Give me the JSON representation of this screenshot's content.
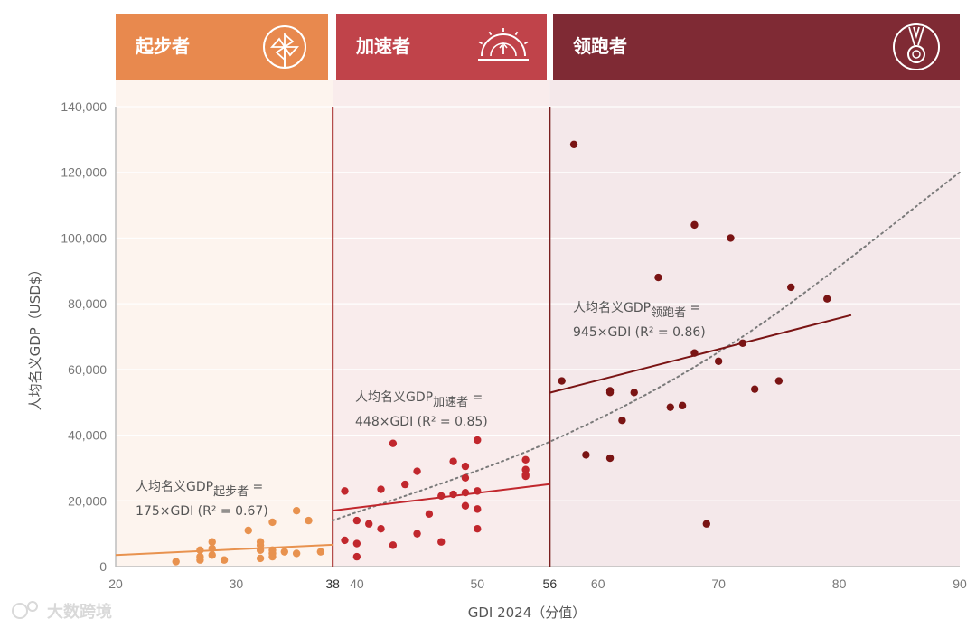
{
  "chart_data": {
    "type": "scatter",
    "title": "",
    "xlabel": "GDI 2024（分值）",
    "ylabel": "人均名义GDP（USD$）",
    "xlim": [
      20,
      90
    ],
    "ylim": [
      0,
      140000
    ],
    "x_ticks": [
      "20",
      "30",
      "38",
      "40",
      "50",
      "56",
      "60",
      "70",
      "80",
      "90"
    ],
    "y_ticks": [
      "0",
      "20,000",
      "40,000",
      "60,000",
      "80,000",
      "100,000",
      "120,000",
      "140,000"
    ],
    "grid": true,
    "zone_boundaries": [
      38,
      56
    ],
    "zones": [
      {
        "name": "起步者",
        "color": "#e8894e",
        "bg": "#fdf4ee",
        "icon": "pinwheel-icon"
      },
      {
        "name": "加速者",
        "color": "#c0434a",
        "bg": "#f9ecec",
        "icon": "gauge-icon"
      },
      {
        "name": "领跑者",
        "color": "#7f2a34",
        "bg": "#f4e8ea",
        "icon": "medal-icon"
      }
    ],
    "series": [
      {
        "name": "起步者",
        "color": "#e8924f",
        "points": [
          [
            25,
            1500
          ],
          [
            27,
            2000
          ],
          [
            27,
            3000
          ],
          [
            27,
            5000
          ],
          [
            28,
            3500
          ],
          [
            28,
            5500
          ],
          [
            28,
            7500
          ],
          [
            29,
            2000
          ],
          [
            31,
            11000
          ],
          [
            32,
            2500
          ],
          [
            32,
            5000
          ],
          [
            32,
            6500
          ],
          [
            32,
            7500
          ],
          [
            33,
            3000
          ],
          [
            33,
            4000
          ],
          [
            33,
            5000
          ],
          [
            33,
            13500
          ],
          [
            34,
            4500
          ],
          [
            35,
            4000
          ],
          [
            35,
            17000
          ],
          [
            36,
            14000
          ],
          [
            37,
            4500
          ]
        ],
        "fit": {
          "slope": 175,
          "x_range": [
            20,
            38
          ],
          "label_prefix": "人均名义GDP",
          "label_sub": "起步者",
          "label_eq": " =",
          "label_line2": "175×GDI (R² = 0.67)"
        }
      },
      {
        "name": "加速者",
        "color": "#c1272d",
        "points": [
          [
            39,
            23000
          ],
          [
            39,
            8000
          ],
          [
            40,
            14000
          ],
          [
            40,
            7000
          ],
          [
            40,
            3000
          ],
          [
            41,
            13000
          ],
          [
            42,
            23500
          ],
          [
            42,
            11500
          ],
          [
            43,
            6500
          ],
          [
            43,
            37500
          ],
          [
            44,
            25000
          ],
          [
            45,
            29000
          ],
          [
            45,
            10000
          ],
          [
            46,
            16000
          ],
          [
            47,
            21500
          ],
          [
            47,
            7500
          ],
          [
            48,
            22000
          ],
          [
            48,
            32000
          ],
          [
            49,
            30500
          ],
          [
            49,
            27000
          ],
          [
            49,
            18500
          ],
          [
            49,
            22500
          ],
          [
            50,
            38500
          ],
          [
            50,
            23000
          ],
          [
            50,
            17500
          ],
          [
            50,
            11500
          ],
          [
            54,
            32500
          ],
          [
            54,
            29500
          ],
          [
            54,
            28000
          ],
          [
            54,
            27500
          ]
        ],
        "fit": {
          "slope": 448,
          "x_range": [
            38,
            56
          ],
          "label_prefix": "人均名义GDP",
          "label_sub": "加速者",
          "label_eq": " =",
          "label_line2": "448×GDI (R² = 0.85)"
        }
      },
      {
        "name": "领跑者",
        "color": "#7a1414",
        "points": [
          [
            57,
            56500
          ],
          [
            58,
            128500
          ],
          [
            59,
            34000
          ],
          [
            61,
            53500
          ],
          [
            61,
            53000
          ],
          [
            61,
            33000
          ],
          [
            62,
            44500
          ],
          [
            63,
            53000
          ],
          [
            65,
            88000
          ],
          [
            66,
            48500
          ],
          [
            67,
            49000
          ],
          [
            68,
            104000
          ],
          [
            68,
            65000
          ],
          [
            69,
            13000
          ],
          [
            70,
            62500
          ],
          [
            71,
            100000
          ],
          [
            72,
            68000
          ],
          [
            73,
            54000
          ],
          [
            75,
            56500
          ],
          [
            76,
            85000
          ],
          [
            79,
            81500
          ]
        ],
        "fit": {
          "slope": 945,
          "x_range": [
            56,
            81
          ],
          "label_prefix": "人均名义GDP",
          "label_sub": "领跑者",
          "label_eq": " =",
          "label_line2": "945×GDI (R² = 0.86)"
        }
      }
    ],
    "trend_curve": {
      "style": "dotted",
      "color": "#7a7a7a",
      "points": [
        [
          38,
          14000
        ],
        [
          56,
          38000
        ],
        [
          72,
          70000
        ],
        [
          90,
          120000
        ]
      ]
    }
  },
  "watermark": "大数跨境"
}
